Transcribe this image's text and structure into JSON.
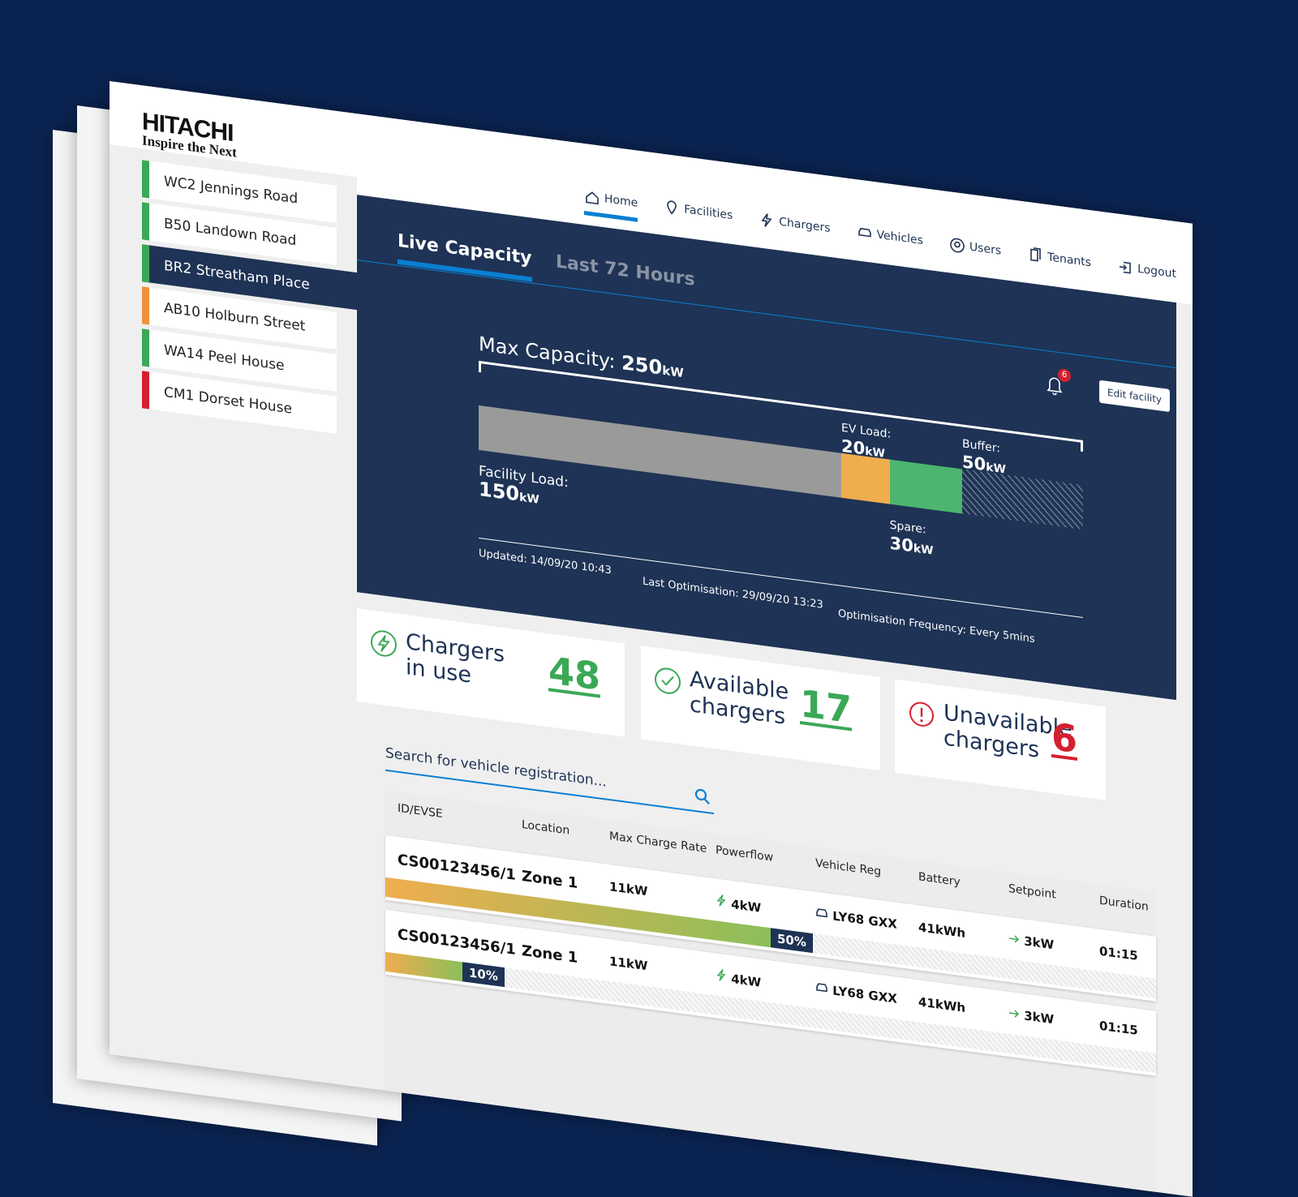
{
  "brand": {
    "name": "HITACHI",
    "tagline": "Inspire the Next"
  },
  "sites": [
    {
      "name": "WC2 Jennings Road",
      "color": "#3aa856"
    },
    {
      "name": "B50 Landown Road",
      "color": "#3aa856"
    },
    {
      "name": "BR2 Streatham Place",
      "color": "#3aa856"
    },
    {
      "name": "AB10 Holburn Street",
      "color": "#f0913a"
    },
    {
      "name": "WA14 Peel House",
      "color": "#3aa856"
    },
    {
      "name": "CM1 Dorset House",
      "color": "#d4202f"
    }
  ],
  "selected_site": 2,
  "nav": {
    "items": [
      "Home",
      "Facilities",
      "Chargers",
      "Vehicles",
      "Users",
      "Tenants",
      "Logout"
    ],
    "active": 0
  },
  "tabs": {
    "items": [
      "Live Capacity",
      "Last 72 Hours"
    ],
    "active": 0
  },
  "notifications": 6,
  "edit_button": "Edit facility",
  "capacity": {
    "label": "Max Capacity:",
    "max": 250,
    "unit": "kW",
    "segments": [
      {
        "label": "Facility Load:",
        "value": 150,
        "color": "#9a9a9a"
      },
      {
        "label": "EV Load:",
        "value": 20,
        "color": "#f0ad4e"
      },
      {
        "label": "Spare:",
        "value": 30,
        "color": "#4cb56e"
      },
      {
        "label": "Buffer:",
        "value": 50,
        "color": "#6b7a90"
      }
    ]
  },
  "meta": [
    "Updated: 14/09/20 10:43",
    "Last Optimisation: 29/09/20 13:23",
    "Optimisation Frequency: Every 5mins"
  ],
  "stats": [
    {
      "label": "Chargers in use",
      "value": 48,
      "color": "#3aa856"
    },
    {
      "label": "Available chargers",
      "value": 17,
      "color": "#3aa856"
    },
    {
      "label": "Unavailable chargers",
      "value": 6,
      "color": "#d4202f"
    }
  ],
  "search": {
    "placeholder": "Search for vehicle registration..."
  },
  "table": {
    "columns": [
      "ID/EVSE",
      "Location",
      "Max Charge Rate",
      "Powerflow",
      "Vehicle Reg",
      "Battery",
      "Setpoint",
      "Duration"
    ],
    "rows": [
      {
        "cells": [
          "CS00123456/1",
          "Zone 1",
          "11kW",
          "4kW",
          "LY68 GXX",
          "41kWh",
          "3kW",
          "01:15"
        ],
        "charge": 50,
        "charge_label": "50%"
      },
      {
        "cells": [
          "CS00123456/1",
          "Zone 1",
          "11kW",
          "4kW",
          "LY68 GXX",
          "41kWh",
          "3kW",
          "01:15"
        ],
        "charge": 10,
        "charge_label": "10%"
      }
    ]
  }
}
